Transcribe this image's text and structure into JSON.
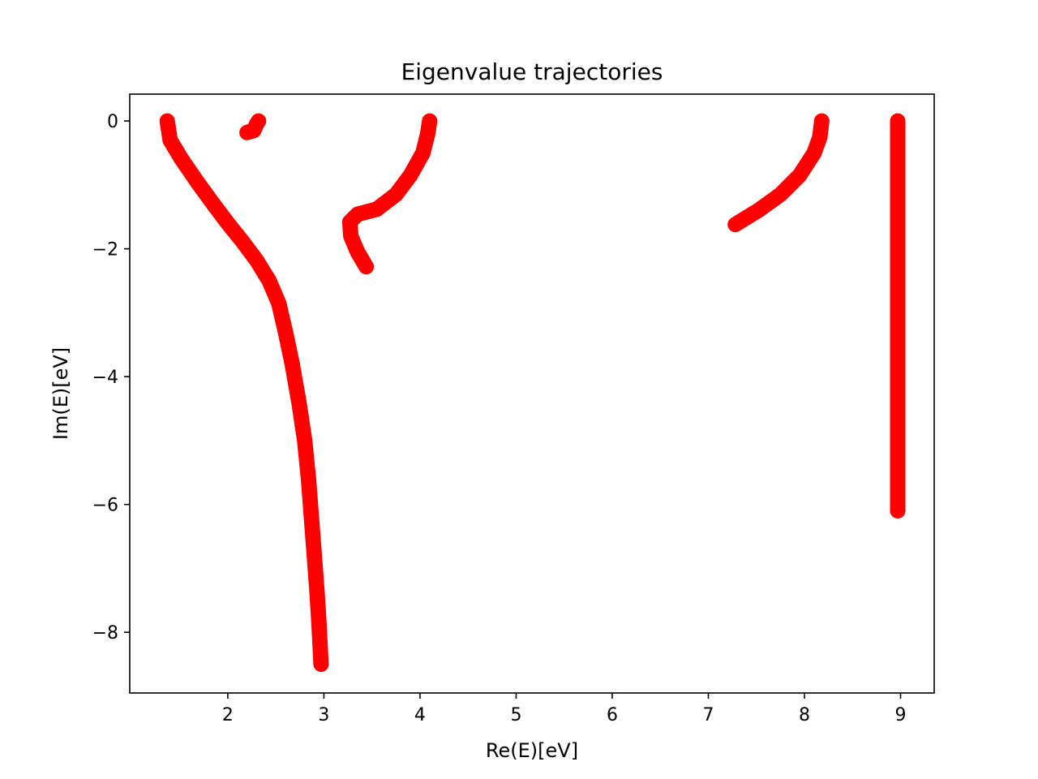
{
  "chart_data": {
    "type": "scatter",
    "title": "Eigenvalue trajectories",
    "xlabel": "Re(E)[eV]",
    "ylabel": "Im(E)[eV]",
    "xlim": [
      0.98,
      9.35
    ],
    "ylim": [
      -8.95,
      0.42
    ],
    "xticks": [
      {
        "value": 2,
        "label": "2"
      },
      {
        "value": 3,
        "label": "3"
      },
      {
        "value": 4,
        "label": "4"
      },
      {
        "value": 5,
        "label": "5"
      },
      {
        "value": 6,
        "label": "6"
      },
      {
        "value": 7,
        "label": "7"
      },
      {
        "value": 8,
        "label": "8"
      },
      {
        "value": 9,
        "label": "9"
      }
    ],
    "yticks": [
      {
        "value": 0,
        "label": "0"
      },
      {
        "value": -2,
        "label": "−2"
      },
      {
        "value": -4,
        "label": "−4"
      },
      {
        "value": -6,
        "label": "−6"
      },
      {
        "value": -8,
        "label": "−8"
      }
    ],
    "grid": false,
    "marker_color": "#ff0000",
    "series": [
      {
        "points": [
          [
            1.37,
            0
          ],
          [
            1.4,
            -0.3
          ],
          [
            1.52,
            -0.6
          ],
          [
            1.68,
            -0.95
          ],
          [
            1.85,
            -1.3
          ],
          [
            2.0,
            -1.6
          ],
          [
            2.15,
            -1.88
          ],
          [
            2.3,
            -2.18
          ],
          [
            2.43,
            -2.5
          ],
          [
            2.53,
            -2.85
          ],
          [
            2.6,
            -3.3
          ],
          [
            2.67,
            -3.8
          ],
          [
            2.74,
            -4.4
          ],
          [
            2.8,
            -5.0
          ],
          [
            2.84,
            -5.6
          ],
          [
            2.87,
            -6.2
          ],
          [
            2.9,
            -6.8
          ],
          [
            2.93,
            -7.4
          ],
          [
            2.95,
            -7.9
          ],
          [
            2.97,
            -8.5
          ]
        ]
      },
      {
        "points": [
          [
            2.32,
            0
          ],
          [
            2.3,
            -0.05
          ],
          [
            2.27,
            -0.15
          ],
          [
            2.2,
            -0.18
          ]
        ]
      },
      {
        "points": [
          [
            4.1,
            0
          ],
          [
            4.08,
            -0.2
          ],
          [
            4.03,
            -0.5
          ],
          [
            3.9,
            -0.85
          ],
          [
            3.75,
            -1.15
          ],
          [
            3.55,
            -1.38
          ],
          [
            3.35,
            -1.46
          ],
          [
            3.27,
            -1.58
          ],
          [
            3.28,
            -1.8
          ],
          [
            3.35,
            -2.05
          ],
          [
            3.44,
            -2.28
          ]
        ]
      },
      {
        "points": [
          [
            8.18,
            0
          ],
          [
            8.16,
            -0.25
          ],
          [
            8.1,
            -0.5
          ],
          [
            7.95,
            -0.85
          ],
          [
            7.75,
            -1.15
          ],
          [
            7.52,
            -1.4
          ],
          [
            7.28,
            -1.62
          ]
        ]
      },
      {
        "points": [
          [
            8.97,
            0
          ],
          [
            8.97,
            -6.1
          ]
        ]
      }
    ]
  }
}
